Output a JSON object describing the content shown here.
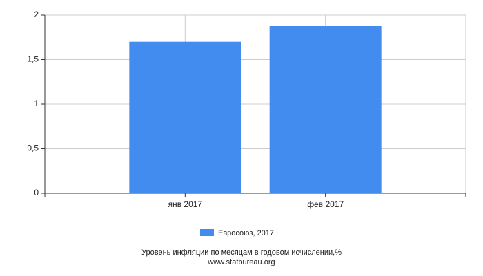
{
  "chart_data": {
    "type": "bar",
    "categories": [
      "янв 2017",
      "фев 2017"
    ],
    "series": [
      {
        "name": "Евросоюз, 2017",
        "color": "#428bef",
        "values": [
          1.7,
          1.88
        ]
      }
    ],
    "ylim": [
      0,
      2
    ],
    "yticks": [
      0,
      {
        "value": 0.5,
        "label": "0,5"
      },
      1,
      {
        "value": 1.5,
        "label": "1,5"
      },
      2
    ],
    "grid": true,
    "legend": "bottom",
    "caption": "Уровень инфляции по месяцам в годовом исчислении,%",
    "source": "www.statbureau.org"
  }
}
